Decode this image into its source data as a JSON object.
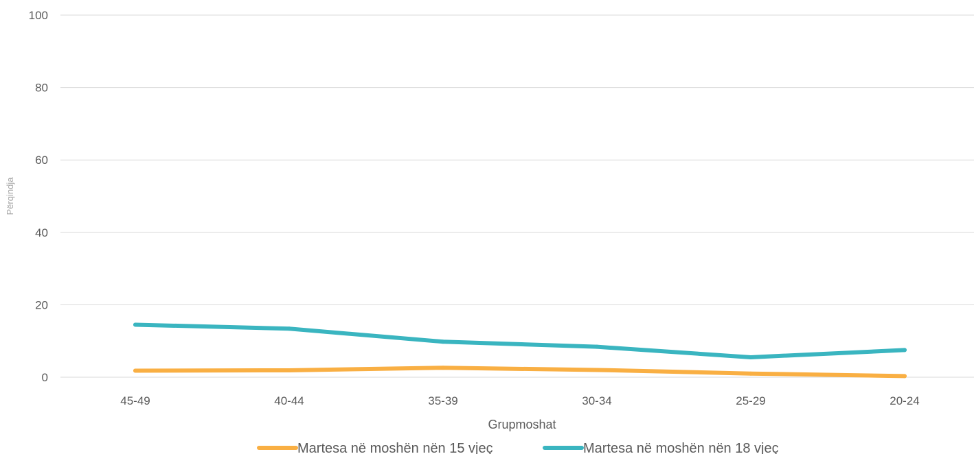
{
  "chart_data": {
    "type": "line",
    "title": "",
    "xlabel": "Grupmoshat",
    "ylabel": "Përqindja",
    "categories": [
      "45-49",
      "40-44",
      "35-39",
      "30-34",
      "25-29",
      "20-24"
    ],
    "ylim": [
      0,
      100
    ],
    "yticks": [
      0,
      20,
      40,
      60,
      80,
      100
    ],
    "grid": true,
    "legend_position": "bottom",
    "series": [
      {
        "name": "Martesa në moshën nën 15 vjeç",
        "color": "#F9AF43",
        "values": [
          1.8,
          1.9,
          2.6,
          2.0,
          1.0,
          0.3
        ]
      },
      {
        "name": "Martesa në moshën nën 18 vjeç",
        "color": "#3AB5C0",
        "values": [
          14.5,
          13.4,
          9.8,
          8.4,
          5.5,
          7.5
        ]
      }
    ]
  }
}
